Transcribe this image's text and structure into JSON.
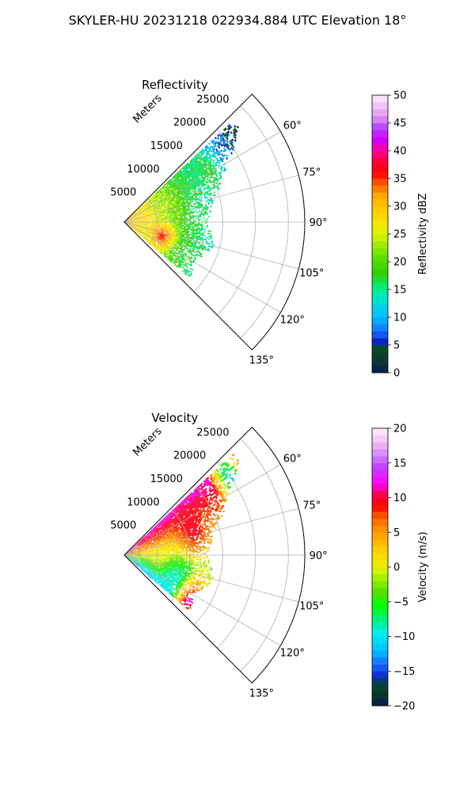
{
  "figure": {
    "suptitle": "SKYLER-HU  20231218  022934.884 UTC Elevation 18°"
  },
  "chart_data": [
    {
      "type": "polar-sector",
      "title": "Reflectivity",
      "range_label": "Meters",
      "theta_range_deg": [
        45,
        135
      ],
      "r_max": 27500,
      "radial_ticks": [
        5000,
        10000,
        15000,
        20000,
        25000
      ],
      "radial_tick_labels": [
        "5000",
        "10000",
        "15000",
        "20000",
        "25000"
      ],
      "angle_ticks": [
        60,
        75,
        90,
        105,
        120,
        135
      ],
      "angle_tick_labels": [
        "60°",
        "75°",
        "90°",
        "105°",
        "120°",
        "135°"
      ],
      "grid": true,
      "colorbar": {
        "label": "Reflectivity dBZ",
        "min": 0,
        "max": 50,
        "ticks": [
          0,
          5,
          10,
          15,
          20,
          25,
          30,
          35,
          40,
          45,
          50
        ],
        "tick_labels": [
          "0",
          "5",
          "10",
          "15",
          "20",
          "25",
          "30",
          "35",
          "40",
          "45",
          "50"
        ]
      },
      "data_extent": [
        {
          "azimuth_deg": 50,
          "range_m": 22500
        },
        {
          "azimuth_deg": 60,
          "range_m": 18000
        },
        {
          "azimuth_deg": 75,
          "range_m": 14000
        },
        {
          "azimuth_deg": 90,
          "range_m": 12500
        },
        {
          "azimuth_deg": 105,
          "range_m": 14000
        },
        {
          "azimuth_deg": 120,
          "range_m": 12000
        },
        {
          "azimuth_deg": 128,
          "range_m": 13000
        }
      ],
      "features": [
        {
          "azimuth_deg": 110,
          "range_m": 6000,
          "value_dbz": 37
        },
        {
          "azimuth_deg": 80,
          "range_m": 2500,
          "value_dbz": 28
        },
        {
          "azimuth_deg": 60,
          "range_m": 15000,
          "value_dbz": 18
        }
      ]
    },
    {
      "type": "polar-sector",
      "title": "Velocity",
      "range_label": "Meters",
      "theta_range_deg": [
        45,
        135
      ],
      "r_max": 27500,
      "radial_ticks": [
        5000,
        10000,
        15000,
        20000,
        25000
      ],
      "radial_tick_labels": [
        "5000",
        "10000",
        "15000",
        "20000",
        "25000"
      ],
      "angle_ticks": [
        60,
        75,
        90,
        105,
        120,
        135
      ],
      "angle_tick_labels": [
        "60°",
        "75°",
        "90°",
        "105°",
        "120°",
        "135°"
      ],
      "grid": true,
      "colorbar": {
        "label": "Velocity (m/s)",
        "min": -20,
        "max": 20,
        "ticks": [
          -20,
          -15,
          -10,
          -5,
          0,
          5,
          10,
          15,
          20
        ],
        "tick_labels": [
          "−20",
          "−15",
          "−10",
          "−5",
          "0",
          "5",
          "10",
          "15",
          "20"
        ]
      },
      "data_extent": [
        {
          "azimuth_deg": 50,
          "range_m": 22500
        },
        {
          "azimuth_deg": 60,
          "range_m": 18000
        },
        {
          "azimuth_deg": 75,
          "range_m": 14000
        },
        {
          "azimuth_deg": 90,
          "range_m": 12500
        },
        {
          "azimuth_deg": 105,
          "range_m": 14000
        },
        {
          "azimuth_deg": 120,
          "range_m": 12000
        },
        {
          "azimuth_deg": 128,
          "range_m": 13000
        }
      ],
      "features": [
        {
          "azimuth_deg": 70,
          "range_m": 11000,
          "value_ms": 10
        },
        {
          "azimuth_deg": 95,
          "range_m": 6000,
          "value_ms": 0
        },
        {
          "azimuth_deg": 115,
          "range_m": 8000,
          "value_ms": -9
        },
        {
          "azimuth_deg": 55,
          "range_m": 20000,
          "value_ms": -12
        },
        {
          "azimuth_deg": 125,
          "range_m": 12000,
          "value_ms": 14
        }
      ]
    }
  ]
}
